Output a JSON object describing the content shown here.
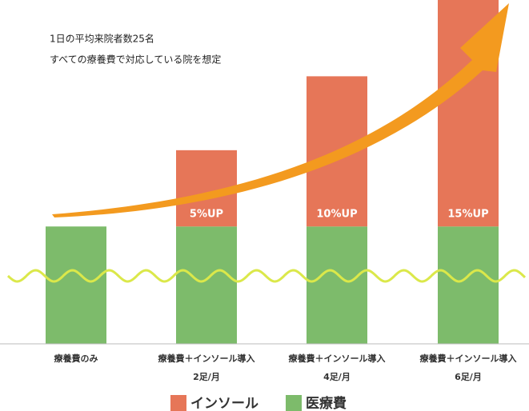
{
  "chart_data": {
    "type": "bar",
    "stacked": true,
    "notes": [
      "1日の平均来院者数25名",
      "すべての療養費で対応している院を想定"
    ],
    "categories": [
      "療養費のみ",
      "療養費＋インソール導入\n2足/月",
      "療養費＋インソール導入\n4足/月",
      "療養費＋インソール導入\n6足/月"
    ],
    "series": [
      {
        "name": "医療費",
        "color": "#7dbb6b",
        "values": [
          100,
          100,
          100,
          100
        ]
      },
      {
        "name": "インソール",
        "color": "#e67658",
        "values": [
          0,
          65,
          128,
          193
        ]
      }
    ],
    "annotations": [
      "5%UP",
      "10%UP",
      "15%UP"
    ],
    "ylim": [
      0,
      293
    ]
  }
}
